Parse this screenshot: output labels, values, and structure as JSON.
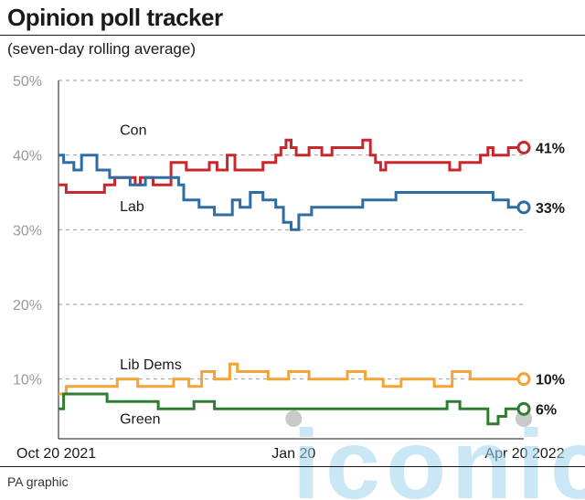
{
  "header": {
    "title": "Opinion poll tracker",
    "subtitle": "(seven-day rolling average)"
  },
  "footer": {
    "credit": "PA graphic",
    "watermark": "iconic"
  },
  "chart_data": {
    "type": "line",
    "title": "Opinion poll tracker",
    "subtitle": "(seven-day rolling average)",
    "x_range": [
      "2021-10-20",
      "2022-04-20"
    ],
    "x_ticks": [
      {
        "label": "Oct 20 2021",
        "date": "2021-10-20"
      },
      {
        "label": "Jan 20",
        "date": "2022-01-20"
      },
      {
        "label": "Apr 20 2022",
        "date": "2022-04-20"
      }
    ],
    "y_ticks": [
      {
        "label": "10%",
        "value": 10
      },
      {
        "label": "20%",
        "value": 20
      },
      {
        "label": "30%",
        "value": 30
      },
      {
        "label": "40%",
        "value": 40
      },
      {
        "label": "50%",
        "value": 50
      }
    ],
    "ylim": [
      2,
      50
    ],
    "grid": "horizontal dashed",
    "series": [
      {
        "name": "Con",
        "color": "#c8282d",
        "end_label": "41%",
        "x": [
          "2021-10-20",
          "2021-10-23",
          "2021-11-01",
          "2021-11-07",
          "2021-11-11",
          "2021-11-17",
          "2021-11-19",
          "2021-11-21",
          "2021-11-25",
          "2021-11-26",
          "2021-12-01",
          "2021-12-03",
          "2021-12-06",
          "2021-12-09",
          "2021-12-16",
          "2021-12-18",
          "2021-12-21",
          "2021-12-25",
          "2021-12-28",
          "2022-01-04",
          "2022-01-08",
          "2022-01-13",
          "2022-01-15",
          "2022-01-17",
          "2022-01-19",
          "2022-01-21",
          "2022-01-26",
          "2022-01-31",
          "2022-02-04",
          "2022-02-09",
          "2022-02-16",
          "2022-02-19",
          "2022-02-21",
          "2022-02-23",
          "2022-02-25",
          "2022-03-01",
          "2022-03-08",
          "2022-03-15",
          "2022-03-22",
          "2022-03-26",
          "2022-03-31",
          "2022-04-03",
          "2022-04-06",
          "2022-04-08",
          "2022-04-11",
          "2022-04-14",
          "2022-04-20"
        ],
        "y": [
          36,
          35,
          35,
          36,
          37,
          37,
          36,
          37,
          37,
          36,
          36,
          39,
          39,
          38,
          38,
          39,
          38,
          40,
          38,
          38,
          39,
          40,
          41,
          42,
          41,
          40,
          41,
          40,
          41,
          41,
          42,
          40,
          39,
          38,
          39,
          39,
          39,
          39,
          38,
          39,
          39,
          40,
          41,
          40,
          40,
          41,
          41
        ]
      },
      {
        "name": "Lab",
        "color": "#2e6da4",
        "end_label": "33%",
        "x": [
          "2021-10-20",
          "2021-10-22",
          "2021-10-26",
          "2021-10-29",
          "2021-11-01",
          "2021-11-04",
          "2021-11-06",
          "2021-11-09",
          "2021-11-11",
          "2021-11-17",
          "2021-11-23",
          "2021-11-30",
          "2021-12-04",
          "2021-12-06",
          "2021-12-08",
          "2021-12-11",
          "2021-12-14",
          "2021-12-20",
          "2021-12-24",
          "2021-12-27",
          "2021-12-30",
          "2022-01-03",
          "2022-01-08",
          "2022-01-13",
          "2022-01-16",
          "2022-01-19",
          "2022-01-22",
          "2022-01-27",
          "2022-02-08",
          "2022-02-16",
          "2022-02-23",
          "2022-03-01",
          "2022-03-15",
          "2022-03-31",
          "2022-04-05",
          "2022-04-08",
          "2022-04-11",
          "2022-04-14",
          "2022-04-20"
        ],
        "y": [
          40,
          39,
          38,
          40,
          40,
          38,
          38,
          37,
          37,
          36,
          37,
          37,
          37,
          36,
          34,
          34,
          33,
          32,
          32,
          34,
          33,
          35,
          34,
          33,
          31,
          30,
          32,
          33,
          33,
          34,
          34,
          35,
          35,
          35,
          35,
          34,
          34,
          33,
          33
        ]
      },
      {
        "name": "Lib Dems",
        "color": "#f3a338",
        "end_label": "10%",
        "x": [
          "2021-10-20",
          "2021-10-23",
          "2021-11-05",
          "2021-11-12",
          "2021-11-20",
          "2021-11-27",
          "2021-12-04",
          "2021-12-10",
          "2021-12-15",
          "2021-12-20",
          "2021-12-26",
          "2021-12-29",
          "2022-01-05",
          "2022-01-10",
          "2022-01-18",
          "2022-01-26",
          "2022-02-02",
          "2022-02-10",
          "2022-02-17",
          "2022-02-24",
          "2022-03-03",
          "2022-03-10",
          "2022-03-16",
          "2022-03-23",
          "2022-03-30",
          "2022-04-05",
          "2022-04-12",
          "2022-04-20"
        ],
        "y": [
          8,
          9,
          9,
          10,
          9,
          9,
          10,
          9,
          11,
          10,
          12,
          11,
          11,
          10,
          11,
          10,
          10,
          11,
          10,
          9,
          10,
          10,
          9,
          11,
          10,
          10,
          10,
          10
        ]
      },
      {
        "name": "Green",
        "color": "#2e7d32",
        "end_label": "6%",
        "x": [
          "2021-10-20",
          "2021-10-22",
          "2021-10-30",
          "2021-11-08",
          "2021-11-15",
          "2021-11-28",
          "2021-12-07",
          "2021-12-12",
          "2021-12-20",
          "2021-12-28",
          "2022-01-08",
          "2022-01-18",
          "2022-01-28",
          "2022-02-10",
          "2022-02-20",
          "2022-03-03",
          "2022-03-15",
          "2022-03-21",
          "2022-03-26",
          "2022-03-30",
          "2022-04-06",
          "2022-04-10",
          "2022-04-13",
          "2022-04-20"
        ],
        "y": [
          6,
          8,
          8,
          7,
          7,
          6,
          6,
          7,
          6,
          6,
          6,
          6,
          6,
          6,
          6,
          6,
          6,
          7,
          6,
          6,
          4,
          5,
          6,
          6
        ]
      }
    ],
    "series_labels": [
      {
        "text": "Con",
        "series": "Con"
      },
      {
        "text": "Lab",
        "series": "Lab"
      },
      {
        "text": "Lib Dems",
        "series": "Lib Dems"
      },
      {
        "text": "Green",
        "series": "Green"
      }
    ]
  }
}
